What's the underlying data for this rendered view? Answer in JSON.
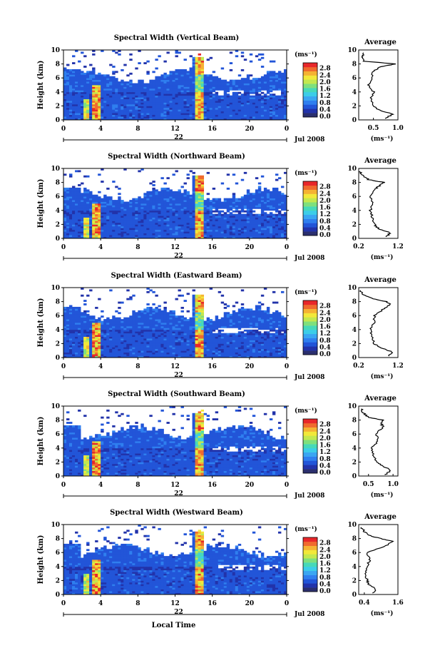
{
  "chart_data": {
    "type": "heatmap",
    "xlabel": "Local Time",
    "x_ticks": [
      "0",
      "4",
      "8",
      "12",
      "16",
      "20",
      "0"
    ],
    "xlim": [
      0,
      24
    ],
    "day_label": "22",
    "date_label": "Jul 2008",
    "ylabel": "Height (km)",
    "y_ticks": [
      "0",
      "2",
      "4",
      "6",
      "8",
      "10"
    ],
    "ylim": [
      0,
      10
    ],
    "colorbar": {
      "unit": "(ms⁻¹)",
      "ticks": [
        "0.0",
        "0.4",
        "0.8",
        "1.2",
        "1.6",
        "2.0",
        "2.4",
        "2.8"
      ],
      "colors": [
        "#2b2f6e",
        "#2233aa",
        "#2255d8",
        "#2f7fef",
        "#3aa6f2",
        "#3ccde8",
        "#47d9b8",
        "#7fe07d",
        "#c3e84f",
        "#f2e83a",
        "#f5b233",
        "#f06a2e",
        "#e8272a"
      ]
    },
    "panels": [
      {
        "title": "Spectral Width (Vertical Beam)",
        "avg": {
          "title": "Average",
          "unit": "(ms⁻¹)",
          "ticks": [
            "0.5",
            "1.0"
          ],
          "xlim": [
            0.2,
            1.0
          ],
          "heights": [
            0.2,
            0.8,
            1.4,
            2,
            3,
            4,
            5,
            6,
            7,
            7.6,
            8,
            8.4,
            9,
            9.6
          ],
          "values": [
            0.72,
            0.9,
            0.62,
            0.5,
            0.45,
            0.5,
            0.4,
            0.47,
            0.5,
            0.65,
            0.95,
            0.3,
            0.27,
            0.3
          ]
        }
      },
      {
        "title": "Spectral Width (Northward Beam)",
        "avg": {
          "title": "Average",
          "unit": "(ms⁻¹)",
          "ticks": [
            "0.2",
            "1.2"
          ],
          "xlim": [
            0.2,
            1.2
          ],
          "heights": [
            0.2,
            0.8,
            1.4,
            2,
            3,
            4,
            5,
            6,
            7,
            7.6,
            8,
            8.4,
            9,
            9.6
          ],
          "values": [
            0.9,
            1.0,
            0.7,
            0.6,
            0.55,
            0.5,
            0.55,
            0.5,
            0.6,
            0.75,
            0.85,
            0.45,
            0.3,
            0.22
          ]
        }
      },
      {
        "title": "Spectral Width (Eastward Beam)",
        "avg": {
          "title": "Average",
          "unit": "(ms⁻¹)",
          "ticks": [
            "0.2",
            "1.2"
          ],
          "xlim": [
            0.2,
            1.2
          ],
          "heights": [
            0.2,
            0.8,
            1.4,
            2,
            3,
            4,
            5,
            6,
            7,
            7.6,
            8,
            8.4,
            9,
            9.6
          ],
          "values": [
            0.95,
            1.05,
            0.75,
            0.6,
            0.55,
            0.5,
            0.6,
            0.6,
            0.85,
            1.0,
            0.9,
            0.55,
            0.3,
            0.25
          ]
        }
      },
      {
        "title": "Spectral Width (Southward Beam)",
        "avg": {
          "title": "Average",
          "unit": "(ms⁻¹)",
          "ticks": [
            "0.5",
            "1.0"
          ],
          "xlim": [
            0.3,
            1.1
          ],
          "heights": [
            0.2,
            0.8,
            1.4,
            2,
            3,
            4,
            5,
            6,
            7,
            7.6,
            8,
            8.4,
            9,
            9.6
          ],
          "values": [
            0.85,
            0.95,
            0.8,
            0.65,
            0.6,
            0.55,
            0.7,
            0.65,
            0.8,
            0.75,
            0.8,
            0.5,
            0.4,
            0.35
          ]
        }
      },
      {
        "title": "Spectral Width (Westward Beam)",
        "avg": {
          "title": "Average",
          "unit": "(ms⁻¹)",
          "ticks": [
            "0.4",
            "1.6"
          ],
          "xlim": [
            0.2,
            1.6
          ],
          "heights": [
            0.2,
            0.8,
            1.4,
            2,
            3,
            4,
            5,
            6,
            7,
            7.6,
            8,
            8.4,
            9,
            9.6
          ],
          "values": [
            0.7,
            0.8,
            0.55,
            0.5,
            0.45,
            0.5,
            0.6,
            0.5,
            1.2,
            1.4,
            1.0,
            0.6,
            0.4,
            0.3
          ]
        }
      }
    ]
  }
}
